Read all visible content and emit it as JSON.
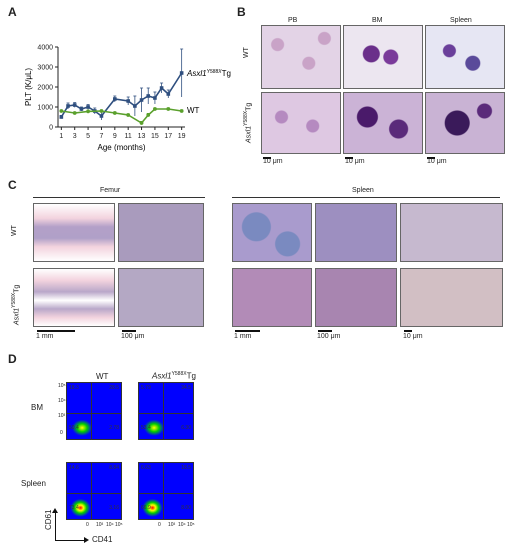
{
  "panels": {
    "A": "A",
    "B": "B",
    "C": "C",
    "D": "D"
  },
  "chart_data": {
    "type": "line",
    "ylabel": "PLT (K/μL)",
    "xlabel": "Age (months)",
    "ylim": [
      0,
      4000
    ],
    "yticks": [
      "0",
      "1000",
      "2000",
      "3000",
      "4000"
    ],
    "xticks": [
      "1",
      "3",
      "5",
      "7",
      "9",
      "11",
      "13",
      "15",
      "17",
      "19"
    ],
    "series": [
      {
        "name": "Asxl1Y588XTg",
        "color": "#2f4f7f",
        "x": [
          1,
          2,
          3,
          4,
          5,
          6,
          7,
          9,
          11,
          12,
          13,
          14,
          15,
          16,
          17,
          19
        ],
        "y": [
          500,
          1050,
          1100,
          900,
          1000,
          800,
          550,
          1400,
          1300,
          1050,
          1350,
          1550,
          1450,
          1950,
          1650,
          2700
        ],
        "err": [
          80,
          150,
          120,
          100,
          120,
          150,
          200,
          150,
          200,
          500,
          600,
          400,
          300,
          250,
          200,
          1200
        ]
      },
      {
        "name": "WT",
        "color": "#5aa02c",
        "x": [
          1,
          3,
          5,
          7,
          9,
          11,
          13,
          14,
          15,
          17,
          19
        ],
        "y": [
          800,
          700,
          780,
          800,
          700,
          600,
          200,
          600,
          900,
          900,
          800
        ],
        "err": [
          50,
          50,
          60,
          60,
          60,
          60,
          80,
          80,
          60,
          60,
          60
        ]
      }
    ]
  },
  "labels": {
    "series_blue": "Asxl1",
    "series_blue_sup": "Y588X",
    "series_blue_suffix": "Tg",
    "series_green": "WT"
  },
  "B": {
    "cols": [
      "PB",
      "BM",
      "Spleen"
    ],
    "rows": [
      "WT",
      "Asxl1",
      "Y588X",
      "Tg"
    ],
    "scale": [
      "10 μm",
      "10 μm",
      "10 μm"
    ]
  },
  "C": {
    "femur": "Femur",
    "spleen": "Spleen",
    "scale": [
      "1 mm",
      "100 μm",
      "1 mm",
      "100 μm",
      "10 μm"
    ]
  },
  "D": {
    "col_wt": "WT",
    "row_bm": "BM",
    "row_spleen": "Spleen",
    "xaxis": "CD41",
    "yaxis": "CD61",
    "ticks": [
      "0",
      "10³",
      "10⁴",
      "10⁵"
    ],
    "quadrants": {
      "bm_wt": [
        "18.3",
        "28.5",
        "50.4",
        "2.78"
      ],
      "bm_tg": [
        "5.79",
        "34.5",
        "53.4",
        "6.30"
      ],
      "sp_wt": [
        "14.6",
        "8.84",
        "73.4",
        "3.16"
      ],
      "sp_tg": [
        "6.63",
        "18.5",
        "66.9",
        "8.00"
      ]
    }
  }
}
